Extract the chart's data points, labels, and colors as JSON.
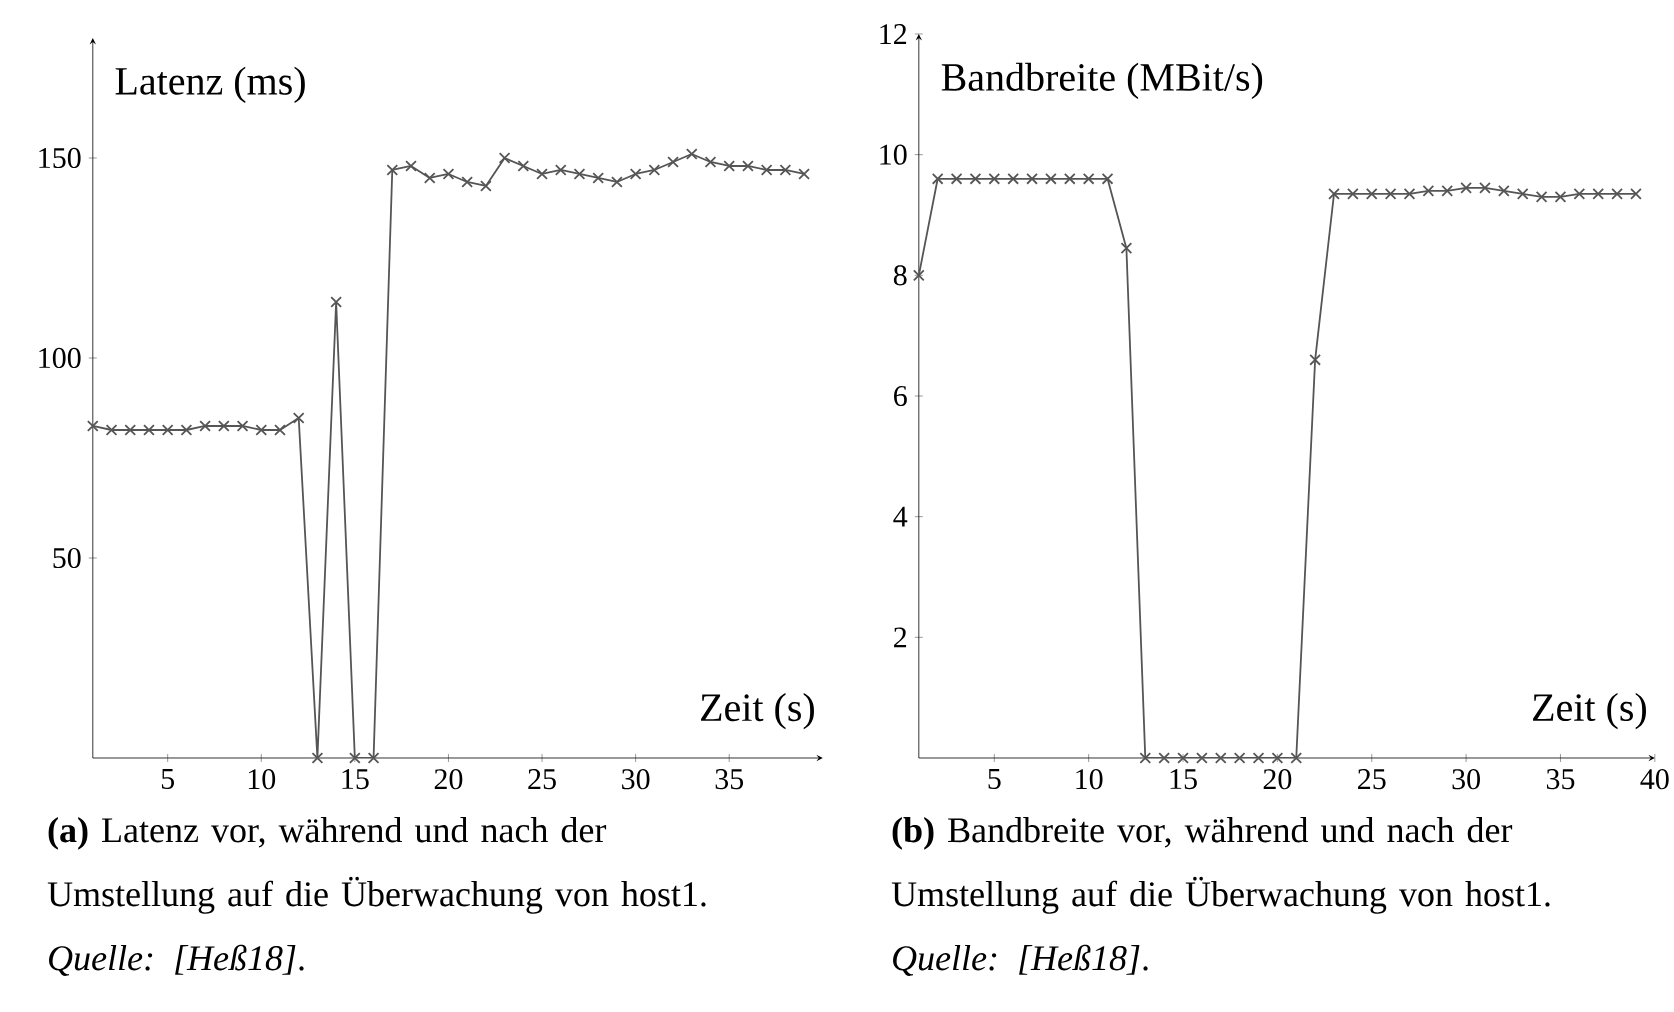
{
  "chart_data": [
    {
      "type": "line",
      "xlabel": "Zeit (s)",
      "ylabel": "Latenz (ms)",
      "color": "#555555",
      "marker": "cross",
      "line_style": "solid",
      "x": [
        1,
        2,
        3,
        4,
        5,
        6,
        7,
        8,
        9,
        10,
        11,
        12,
        13,
        14,
        15,
        16,
        17,
        18,
        19,
        20,
        21,
        22,
        23,
        24,
        25,
        26,
        27,
        28,
        29,
        30,
        31,
        32,
        33,
        34,
        35,
        36,
        37,
        38,
        39
      ],
      "values": [
        83,
        82,
        82,
        82,
        82,
        82,
        83,
        83,
        83,
        82,
        82,
        85,
        0,
        114,
        0,
        0,
        147,
        148,
        145,
        146,
        144,
        143,
        150,
        148,
        146,
        147,
        146,
        145,
        144,
        146,
        147,
        149,
        151,
        149,
        148,
        148,
        147,
        147,
        146
      ],
      "xlim": [
        1,
        40
      ],
      "ylim": [
        0,
        180
      ],
      "xticks": [
        5,
        10,
        15,
        20,
        25,
        30,
        35
      ],
      "yticks": [
        50,
        100,
        150
      ],
      "annotations": [
        "**(a)** Latenz vor, während und nach der Umstellung auf die Überwachung von host1. *Quelle: [Heß18]*."
      ]
    },
    {
      "type": "line",
      "xlabel": "Zeit (s)",
      "ylabel": "Bandbreite (MBit/s)",
      "color": "#555555",
      "marker": "cross",
      "line_style": "solid",
      "x": [
        1,
        2,
        3,
        4,
        5,
        6,
        7,
        8,
        9,
        10,
        11,
        12,
        13,
        14,
        15,
        16,
        17,
        18,
        19,
        20,
        21,
        22,
        23,
        24,
        25,
        26,
        27,
        28,
        29,
        30,
        31,
        32,
        33,
        34,
        35,
        36,
        37,
        38,
        39
      ],
      "values": [
        8.0,
        9.6,
        9.6,
        9.6,
        9.6,
        9.6,
        9.6,
        9.6,
        9.6,
        9.6,
        9.6,
        8.45,
        0,
        0,
        0,
        0,
        0,
        0,
        0,
        0,
        0,
        6.6,
        9.35,
        9.35,
        9.35,
        9.35,
        9.35,
        9.4,
        9.4,
        9.45,
        9.45,
        9.4,
        9.35,
        9.3,
        9.3,
        9.35,
        9.35,
        9.35,
        9.35
      ],
      "xlim": [
        1,
        40
      ],
      "ylim": [
        0,
        12
      ],
      "xticks": [
        5,
        10,
        15,
        20,
        25,
        30,
        35,
        40
      ],
      "yticks": [
        2,
        4,
        6,
        8,
        10,
        12
      ],
      "annotations": [
        "**(b)** Bandbreite vor, während und nach der Umstellung auf die Überwachung von host1. *Quelle: [Heß18]*."
      ]
    }
  ]
}
